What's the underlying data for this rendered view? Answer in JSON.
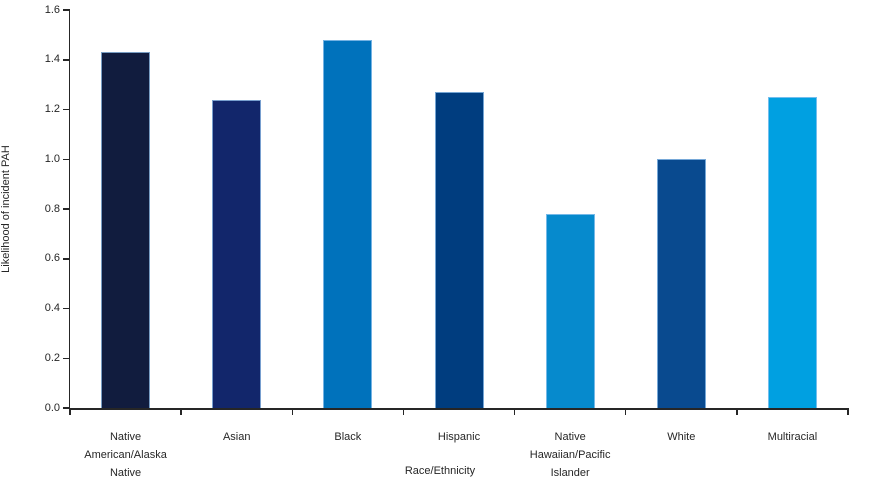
{
  "chart_data": {
    "type": "bar",
    "title": "",
    "xlabel": "Race/Ethnicity",
    "ylabel": "Likelihood of incident PAH",
    "categories": [
      "Native American/Alaska Native",
      "Asian",
      "Black",
      "Hispanic",
      "Native Hawaiian/Pacific Islander",
      "White",
      "Multiracial"
    ],
    "values": [
      1.43,
      1.24,
      1.48,
      1.27,
      0.78,
      1.0,
      1.25
    ],
    "bar_colors": [
      "#111c3e",
      "#12266b",
      "#0072bc",
      "#003d7f",
      "#068acd",
      "#094a8f",
      "#00a0e1"
    ],
    "ylim": [
      0,
      1.6
    ],
    "ytick_step": 0.2,
    "ytick_labels": [
      "0.0",
      "0.2",
      "0.4",
      "0.6",
      "0.8",
      "1.0",
      "1.2",
      "1.4",
      "1.6"
    ],
    "grid": false,
    "legend": "none",
    "axis_color": "#262626",
    "text_color": "#262626",
    "background_color": "#ffffff"
  }
}
